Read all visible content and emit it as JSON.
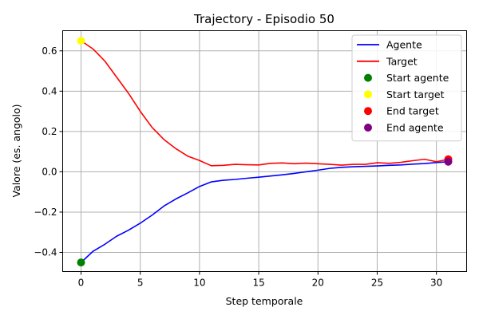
{
  "chart_data": {
    "type": "line",
    "title": "Trajectory - Episodio 50",
    "xlabel": "Step temporale",
    "ylabel": "Valore (es. angolo)",
    "xlim": [
      -1.55,
      32.55
    ],
    "ylim": [
      -0.495,
      0.7
    ],
    "xticks": [
      0,
      5,
      10,
      15,
      20,
      25,
      30
    ],
    "yticks": [
      -0.4,
      -0.2,
      0.0,
      0.2,
      0.4,
      0.6
    ],
    "ytick_labels": [
      "−0.4",
      "−0.2",
      "0.0",
      "0.2",
      "0.4",
      "0.6"
    ],
    "grid": true,
    "legend_position": "top-right",
    "series": [
      {
        "name": "Agente",
        "kind": "line",
        "color": "#0000ff",
        "x": [
          0,
          1,
          2,
          3,
          4,
          5,
          6,
          7,
          8,
          9,
          10,
          11,
          12,
          13,
          14,
          15,
          16,
          17,
          18,
          19,
          20,
          21,
          22,
          23,
          24,
          25,
          26,
          27,
          28,
          29,
          30,
          31
        ],
        "y": [
          -0.45,
          -0.395,
          -0.36,
          -0.32,
          -0.29,
          -0.255,
          -0.215,
          -0.17,
          -0.135,
          -0.105,
          -0.073,
          -0.05,
          -0.042,
          -0.038,
          -0.032,
          -0.027,
          -0.021,
          -0.015,
          -0.008,
          0.0,
          0.008,
          0.017,
          0.022,
          0.025,
          0.027,
          0.029,
          0.032,
          0.034,
          0.038,
          0.041,
          0.046,
          0.05
        ]
      },
      {
        "name": "Target",
        "kind": "line",
        "color": "#ff0000",
        "x": [
          0,
          1,
          2,
          3,
          4,
          5,
          6,
          7,
          8,
          9,
          10,
          11,
          12,
          13,
          14,
          15,
          16,
          17,
          18,
          19,
          20,
          21,
          22,
          23,
          24,
          25,
          26,
          27,
          28,
          29,
          30,
          31
        ],
        "y": [
          0.65,
          0.61,
          0.55,
          0.47,
          0.39,
          0.3,
          0.22,
          0.16,
          0.115,
          0.078,
          0.056,
          0.03,
          0.032,
          0.037,
          0.035,
          0.034,
          0.042,
          0.044,
          0.04,
          0.043,
          0.04,
          0.037,
          0.033,
          0.037,
          0.037,
          0.045,
          0.042,
          0.047,
          0.055,
          0.062,
          0.05,
          0.062
        ]
      },
      {
        "name": "Start agente",
        "kind": "scatter",
        "color": "#008000",
        "x": [
          0
        ],
        "y": [
          -0.45
        ]
      },
      {
        "name": "Start target",
        "kind": "scatter",
        "color": "#ffff00",
        "x": [
          0
        ],
        "y": [
          0.65
        ]
      },
      {
        "name": "End target",
        "kind": "scatter",
        "color": "#ff0000",
        "x": [
          31
        ],
        "y": [
          0.062
        ]
      },
      {
        "name": "End agente",
        "kind": "scatter",
        "color": "#800080",
        "x": [
          31
        ],
        "y": [
          0.05
        ]
      }
    ]
  }
}
